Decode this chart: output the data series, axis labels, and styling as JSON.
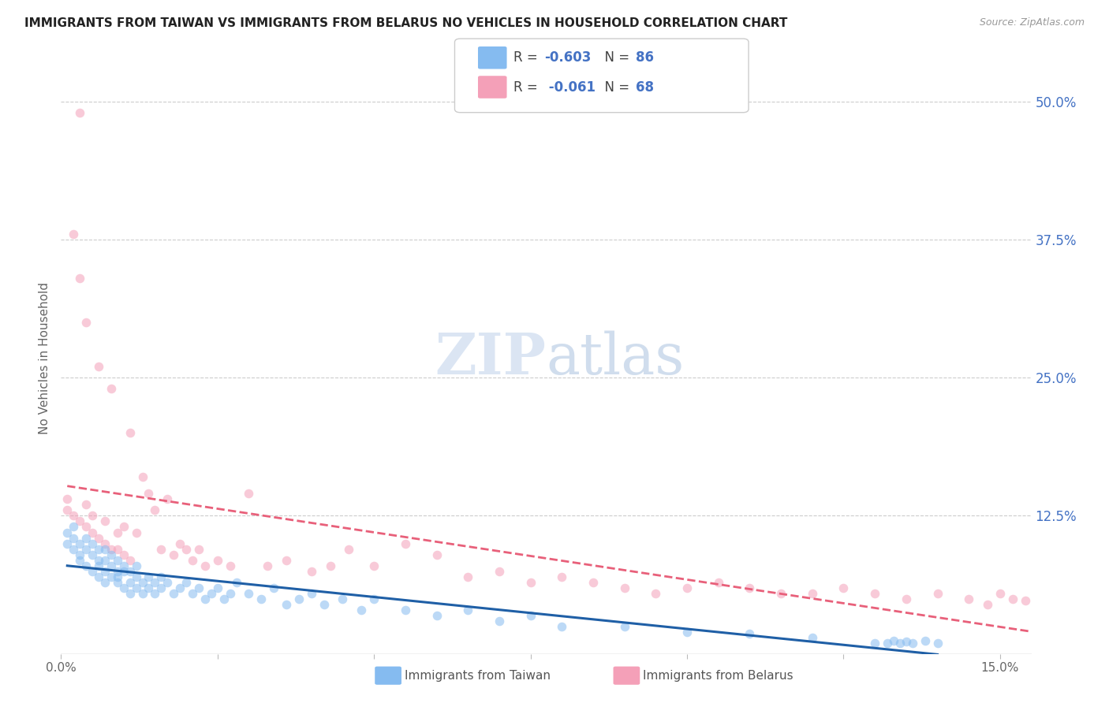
{
  "title": "IMMIGRANTS FROM TAIWAN VS IMMIGRANTS FROM BELARUS NO VEHICLES IN HOUSEHOLD CORRELATION CHART",
  "source": "Source: ZipAtlas.com",
  "ylabel": "No Vehicles in Household",
  "xlim": [
    0.0,
    0.155
  ],
  "ylim": [
    0.0,
    0.535
  ],
  "ytick_positions": [
    0.125,
    0.25,
    0.375,
    0.5
  ],
  "ytick_labels": [
    "12.5%",
    "25.0%",
    "37.5%",
    "50.0%"
  ],
  "xtick_positions": [
    0.0,
    0.025,
    0.05,
    0.075,
    0.1,
    0.125,
    0.15
  ],
  "xtick_labels": [
    "0.0%",
    "",
    "",
    "",
    "",
    "",
    "15.0%"
  ],
  "taiwan_color": "#85BBF0",
  "belarus_color": "#F4A0B8",
  "taiwan_line_color": "#1F5FA6",
  "belarus_line_color": "#E8607A",
  "taiwan_R": -0.603,
  "taiwan_N": 86,
  "belarus_R": -0.061,
  "belarus_N": 68,
  "legend_label_taiwan": "Immigrants from Taiwan",
  "legend_label_belarus": "Immigrants from Belarus",
  "watermark_zip": "ZIP",
  "watermark_atlas": "atlas",
  "background_color": "#ffffff",
  "scatter_alpha": 0.55,
  "scatter_size": 70,
  "taiwan_x": [
    0.001,
    0.001,
    0.002,
    0.002,
    0.002,
    0.003,
    0.003,
    0.003,
    0.004,
    0.004,
    0.004,
    0.005,
    0.005,
    0.005,
    0.006,
    0.006,
    0.006,
    0.006,
    0.007,
    0.007,
    0.007,
    0.007,
    0.008,
    0.008,
    0.008,
    0.009,
    0.009,
    0.009,
    0.009,
    0.01,
    0.01,
    0.01,
    0.011,
    0.011,
    0.011,
    0.012,
    0.012,
    0.012,
    0.013,
    0.013,
    0.014,
    0.014,
    0.015,
    0.015,
    0.016,
    0.016,
    0.017,
    0.018,
    0.019,
    0.02,
    0.021,
    0.022,
    0.023,
    0.024,
    0.025,
    0.026,
    0.027,
    0.028,
    0.03,
    0.032,
    0.034,
    0.036,
    0.038,
    0.04,
    0.042,
    0.045,
    0.048,
    0.05,
    0.055,
    0.06,
    0.065,
    0.07,
    0.075,
    0.08,
    0.09,
    0.1,
    0.11,
    0.12,
    0.13,
    0.132,
    0.133,
    0.134,
    0.135,
    0.136,
    0.138,
    0.14
  ],
  "taiwan_y": [
    0.1,
    0.11,
    0.095,
    0.105,
    0.115,
    0.09,
    0.1,
    0.085,
    0.095,
    0.105,
    0.08,
    0.09,
    0.1,
    0.075,
    0.085,
    0.095,
    0.07,
    0.08,
    0.075,
    0.085,
    0.095,
    0.065,
    0.08,
    0.07,
    0.09,
    0.075,
    0.085,
    0.065,
    0.07,
    0.08,
    0.06,
    0.075,
    0.065,
    0.075,
    0.055,
    0.07,
    0.06,
    0.08,
    0.065,
    0.055,
    0.07,
    0.06,
    0.065,
    0.055,
    0.07,
    0.06,
    0.065,
    0.055,
    0.06,
    0.065,
    0.055,
    0.06,
    0.05,
    0.055,
    0.06,
    0.05,
    0.055,
    0.065,
    0.055,
    0.05,
    0.06,
    0.045,
    0.05,
    0.055,
    0.045,
    0.05,
    0.04,
    0.05,
    0.04,
    0.035,
    0.04,
    0.03,
    0.035,
    0.025,
    0.025,
    0.02,
    0.018,
    0.015,
    0.01,
    0.01,
    0.012,
    0.01,
    0.011,
    0.01,
    0.012,
    0.01
  ],
  "belarus_x": [
    0.001,
    0.001,
    0.002,
    0.002,
    0.003,
    0.003,
    0.003,
    0.004,
    0.004,
    0.004,
    0.005,
    0.005,
    0.006,
    0.006,
    0.007,
    0.007,
    0.008,
    0.008,
    0.009,
    0.009,
    0.01,
    0.01,
    0.011,
    0.011,
    0.012,
    0.013,
    0.014,
    0.015,
    0.016,
    0.017,
    0.018,
    0.019,
    0.02,
    0.021,
    0.022,
    0.023,
    0.025,
    0.027,
    0.03,
    0.033,
    0.036,
    0.04,
    0.043,
    0.046,
    0.05,
    0.055,
    0.06,
    0.065,
    0.07,
    0.075,
    0.08,
    0.085,
    0.09,
    0.095,
    0.1,
    0.105,
    0.11,
    0.115,
    0.12,
    0.125,
    0.13,
    0.135,
    0.14,
    0.145,
    0.148,
    0.15,
    0.152,
    0.154
  ],
  "belarus_y": [
    0.13,
    0.14,
    0.38,
    0.125,
    0.49,
    0.12,
    0.34,
    0.3,
    0.115,
    0.135,
    0.11,
    0.125,
    0.26,
    0.105,
    0.12,
    0.1,
    0.24,
    0.095,
    0.11,
    0.095,
    0.115,
    0.09,
    0.2,
    0.085,
    0.11,
    0.16,
    0.145,
    0.13,
    0.095,
    0.14,
    0.09,
    0.1,
    0.095,
    0.085,
    0.095,
    0.08,
    0.085,
    0.08,
    0.145,
    0.08,
    0.085,
    0.075,
    0.08,
    0.095,
    0.08,
    0.1,
    0.09,
    0.07,
    0.075,
    0.065,
    0.07,
    0.065,
    0.06,
    0.055,
    0.06,
    0.065,
    0.06,
    0.055,
    0.055,
    0.06,
    0.055,
    0.05,
    0.055,
    0.05,
    0.045,
    0.055,
    0.05,
    0.048
  ]
}
